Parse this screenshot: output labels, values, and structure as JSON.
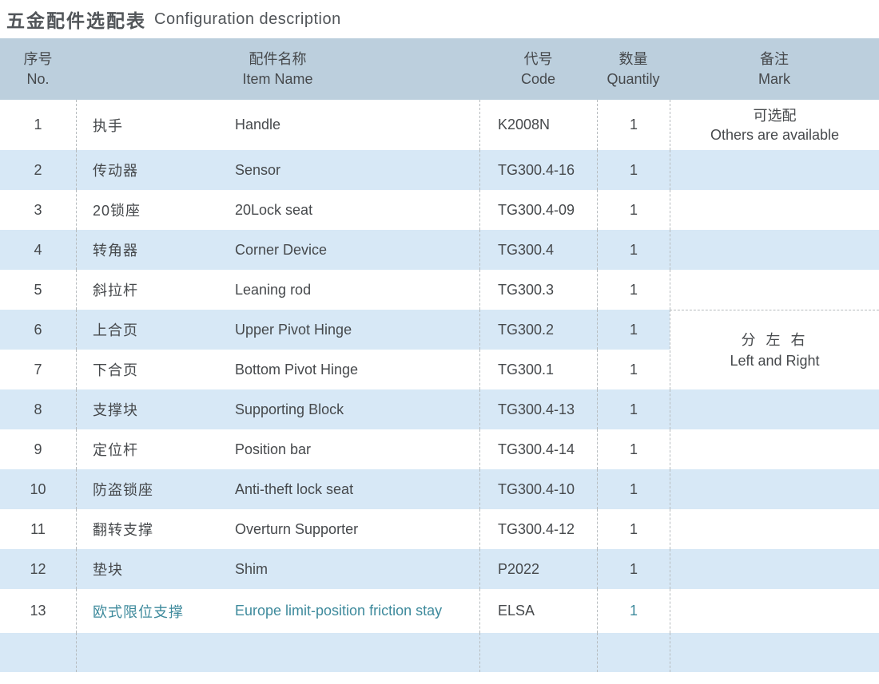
{
  "title": {
    "zh": "五金配件选配表",
    "en": "Configuration description"
  },
  "colors": {
    "accent_teal": "#3e8a9c",
    "header_bg": "#bccfdd",
    "alt_row_bg": "#d7e8f6",
    "text": "#46494c"
  },
  "table": {
    "headers": {
      "no": {
        "zh": "序号",
        "en": "No."
      },
      "item": {
        "zh": "配件名称",
        "en": "Item Name"
      },
      "code": {
        "zh": "代号",
        "en": "Code"
      },
      "qty": {
        "zh": "数量",
        "en": "Quantily"
      },
      "mark": {
        "zh": "备注",
        "en": "Mark"
      }
    },
    "rows": [
      {
        "no": "1",
        "name_zh": "执手",
        "name_en": "Handle",
        "code": "K2008N",
        "qty": "1",
        "mark_zh": "可选配",
        "mark_en": "Others are available",
        "highlight": false
      },
      {
        "no": "2",
        "name_zh": "传动器",
        "name_en": "Sensor",
        "code": "TG300.4-16",
        "qty": "1",
        "mark_zh": "",
        "mark_en": "",
        "highlight": false
      },
      {
        "no": "3",
        "name_zh": "20锁座",
        "name_en": "20Lock seat",
        "code": "TG300.4-09",
        "qty": "1",
        "mark_zh": "",
        "mark_en": "",
        "highlight": false
      },
      {
        "no": "4",
        "name_zh": "转角器",
        "name_en": "Corner Device",
        "code": "TG300.4",
        "qty": "1",
        "mark_zh": "",
        "mark_en": "",
        "highlight": false
      },
      {
        "no": "5",
        "name_zh": "斜拉杆",
        "name_en": "Leaning rod",
        "code": "TG300.3",
        "qty": "1",
        "mark_zh": "",
        "mark_en": "",
        "highlight": false
      },
      {
        "no": "6",
        "name_zh": "上合页",
        "name_en": "Upper Pivot Hinge",
        "code": "TG300.2",
        "qty": "1",
        "mark_zh": "",
        "mark_en": "",
        "highlight": false
      },
      {
        "no": "7",
        "name_zh": "下合页",
        "name_en": "Bottom Pivot Hinge",
        "code": "TG300.1",
        "qty": "1",
        "mark_zh": "",
        "mark_en": "",
        "highlight": false
      },
      {
        "no": "8",
        "name_zh": "支撑块",
        "name_en": "Supporting Block",
        "code": "TG300.4-13",
        "qty": "1",
        "mark_zh": "",
        "mark_en": "",
        "highlight": false
      },
      {
        "no": "9",
        "name_zh": "定位杆",
        "name_en": "Position bar",
        "code": "TG300.4-14",
        "qty": "1",
        "mark_zh": "",
        "mark_en": "",
        "highlight": false
      },
      {
        "no": "10",
        "name_zh": "防盗锁座",
        "name_en": "Anti-theft lock seat",
        "code": "TG300.4-10",
        "qty": "1",
        "mark_zh": "",
        "mark_en": "",
        "highlight": false
      },
      {
        "no": "11",
        "name_zh": "翻转支撑",
        "name_en": "Overturn Supporter",
        "code": "TG300.4-12",
        "qty": "1",
        "mark_zh": "",
        "mark_en": "",
        "highlight": false
      },
      {
        "no": "12",
        "name_zh": "垫块",
        "name_en": "Shim",
        "code": "P2022",
        "qty": "1",
        "mark_zh": "",
        "mark_en": "",
        "highlight": false
      },
      {
        "no": "13",
        "name_zh": "欧式限位支撑",
        "name_en": "Europe limit-position friction stay",
        "code": "ELSA",
        "qty": "1",
        "mark_zh": "",
        "mark_en": "",
        "highlight": true
      }
    ],
    "span_mark": {
      "zh": "分 左 右",
      "en": "Left and Right"
    }
  }
}
